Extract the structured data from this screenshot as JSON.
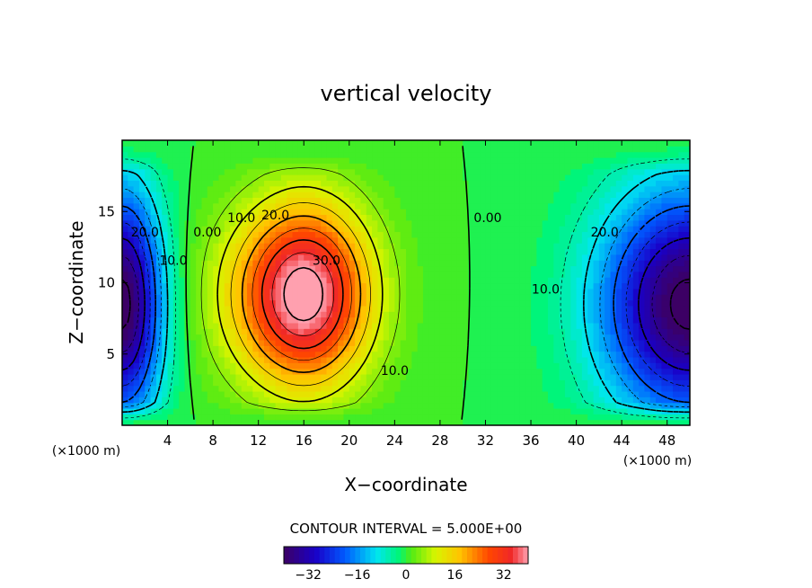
{
  "chart_data": {
    "type": "heatmap",
    "title": "vertical velocity",
    "xlabel": "X−coordinate",
    "ylabel": "Z−coordinate",
    "x_unit_label": "(×1000 m)",
    "xlim": [
      0,
      50
    ],
    "ylim": [
      0,
      20
    ],
    "x_ticks": [
      "4",
      "8",
      "12",
      "16",
      "20",
      "24",
      "28",
      "32",
      "36",
      "40",
      "44",
      "48"
    ],
    "y_ticks": [
      "5",
      "10",
      "15"
    ],
    "x_tick_values": [
      4,
      8,
      12,
      16,
      20,
      24,
      28,
      32,
      36,
      40,
      44,
      48
    ],
    "y_tick_values": [
      5,
      10,
      15
    ],
    "contour_interval_text": "CONTOUR INTERVAL = 5.000E+00",
    "contour_interval": 5,
    "contour_labels": [
      {
        "text": "20.0",
        "x": 2,
        "y": 13.5
      },
      {
        "text": "10.0",
        "x": 4.5,
        "y": 11.5
      },
      {
        "text": "0.00",
        "x": 7.5,
        "y": 13.5
      },
      {
        "text": "10.0",
        "x": 10.5,
        "y": 14.5
      },
      {
        "text": "20.0",
        "x": 13.5,
        "y": 14.7
      },
      {
        "text": "30.0",
        "x": 18,
        "y": 11.5
      },
      {
        "text": "10.0",
        "x": 24,
        "y": 3.8
      },
      {
        "text": "0.00",
        "x": 32.2,
        "y": 14.5
      },
      {
        "text": "10.0",
        "x": 37.3,
        "y": 9.5
      },
      {
        "text": "20.0",
        "x": 42.5,
        "y": 13.5
      }
    ],
    "field_extrema": [
      {
        "kind": "min",
        "x": 0.5,
        "z": 8.5,
        "value": -40
      },
      {
        "kind": "max",
        "x": 14.5,
        "z": 9.5,
        "value": 40
      },
      {
        "kind": "min",
        "x": 49.5,
        "z": 8.5,
        "value": -40
      }
    ],
    "colorbar": {
      "range": [
        -40,
        40
      ],
      "tick_labels": [
        "−32",
        "−16",
        "0",
        "16",
        "32"
      ],
      "tick_values": [
        -32,
        -16,
        0,
        16,
        32
      ],
      "levels": 48
    }
  }
}
